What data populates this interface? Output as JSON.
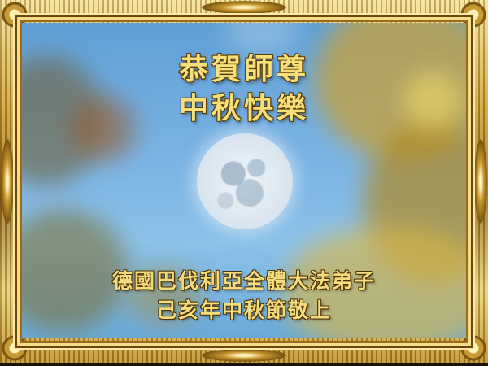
{
  "card": {
    "title_line1": "恭賀師尊",
    "title_line2": "中秋快樂",
    "greeting_line1": "德國巴伐利亞全體大法弟子",
    "greeting_line2": "己亥年中秋節敬上"
  },
  "colors": {
    "frame_gold": "#c9992f",
    "sky": "#7cb4e4",
    "text_gold": "#f7df7a"
  },
  "image": {
    "subject": "full-moon",
    "frame": "gold-ornate-frame"
  }
}
